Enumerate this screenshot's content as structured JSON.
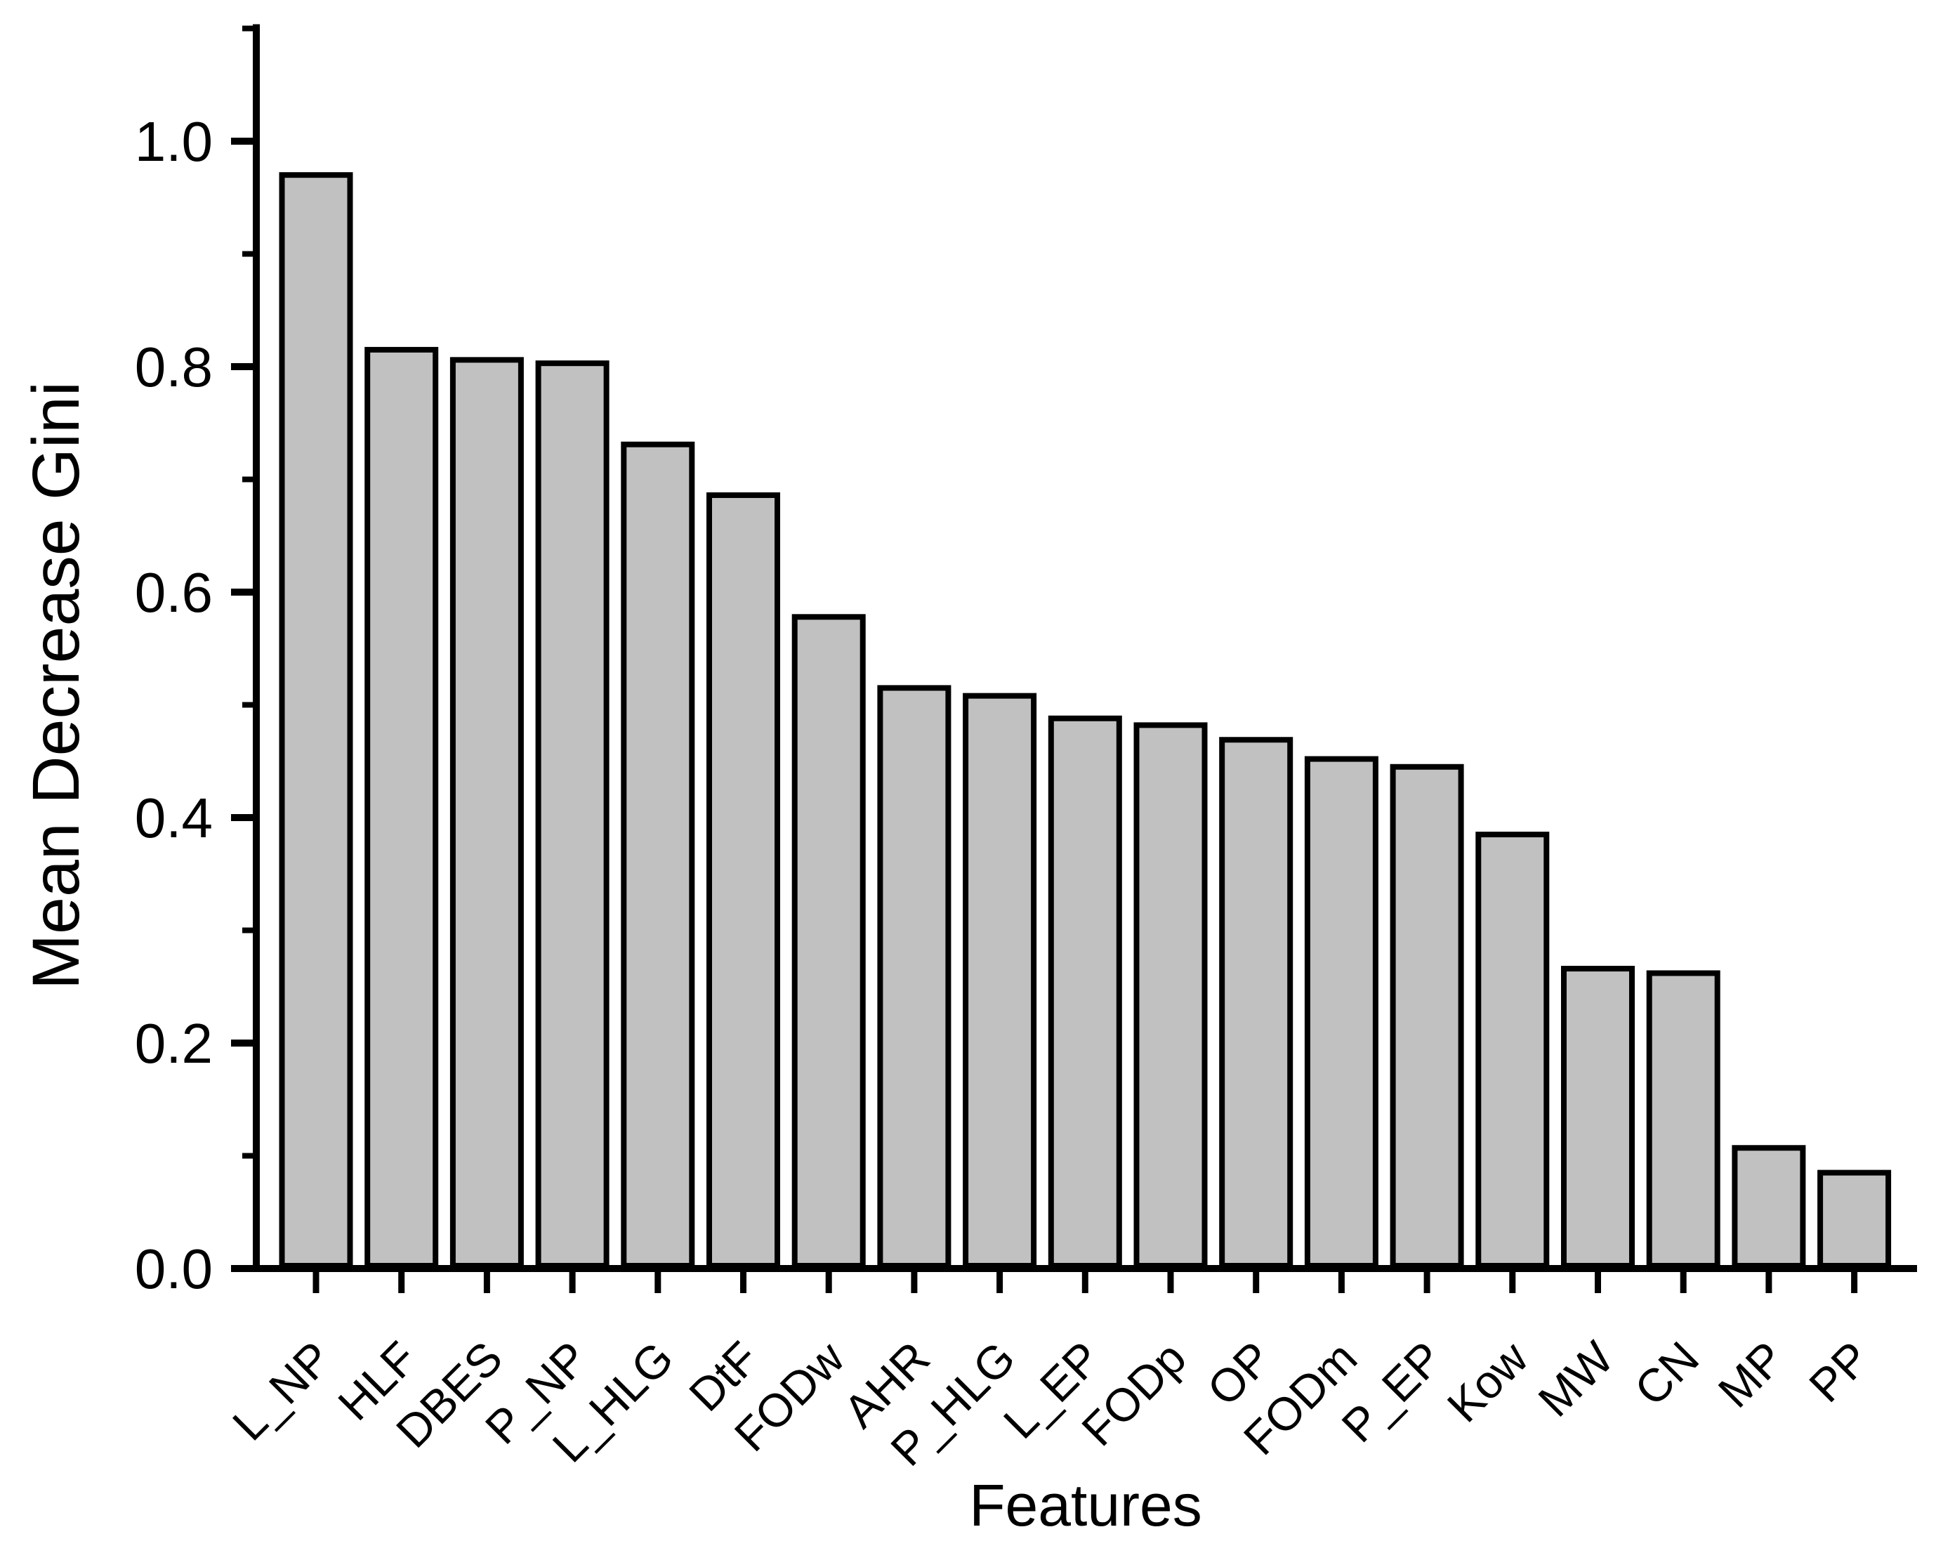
{
  "chart_data": {
    "type": "bar",
    "title": "",
    "xlabel": "Features",
    "ylabel": "Mean Decrease Gini",
    "categories": [
      "L_NP",
      "HLF",
      "DBES",
      "P_NP",
      "L_HLG",
      "DtF",
      "FODw",
      "AHR",
      "P_HLG",
      "L_EP",
      "FODp",
      "OP",
      "FODm",
      "P_EP",
      "Kow",
      "MW",
      "CN",
      "MP",
      "PP"
    ],
    "values": [
      0.97,
      0.815,
      0.806,
      0.803,
      0.731,
      0.686,
      0.578,
      0.515,
      0.508,
      0.488,
      0.482,
      0.469,
      0.452,
      0.445,
      0.385,
      0.266,
      0.262,
      0.107,
      0.085
    ],
    "ylim": [
      0,
      1.1
    ],
    "ytick_values": [
      0.0,
      0.2,
      0.4,
      0.6,
      0.8,
      1.0
    ],
    "ytick_labels": [
      "0.0",
      "0.2",
      "0.4",
      "0.6",
      "0.8",
      "1.0"
    ],
    "yminor_values": [
      0.1,
      0.3,
      0.5,
      0.7,
      0.9,
      1.1
    ],
    "grid": "off",
    "legend": "none",
    "colors": {
      "bar_fill": "#c1c1c1",
      "bar_stroke": "#000000",
      "axis": "#000000",
      "text": "#000000",
      "background": "#ffffff"
    }
  }
}
